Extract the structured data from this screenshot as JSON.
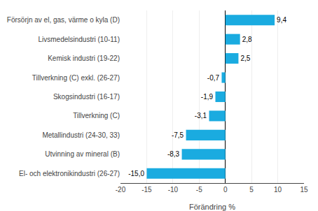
{
  "chart_data": {
    "type": "bar",
    "orientation": "horizontal",
    "categories": [
      "El- och elektronikindustri (26-27)",
      "Utvinning av mineral (B)",
      "Metallindustri (24-30, 33)",
      "Tillverkning (C)",
      "Skogsindustri (16-17)",
      "Tillverkning (C) exkl. (26-27)",
      "Kemisk industri (19-22)",
      "Livsmedelsindustri (10-11)",
      "Försörjn av el, gas, värme o kyla (D)"
    ],
    "values": [
      -15.0,
      -8.3,
      -7.5,
      -3.1,
      -1.9,
      -0.7,
      2.5,
      2.8,
      9.4
    ],
    "value_labels": [
      "-15,0",
      "-8,3",
      "-7,5",
      "-3,1",
      "-1,9",
      "-0,7",
      "2,5",
      "2,8",
      "9,4"
    ],
    "data_labels": true,
    "color": "#1AABE0",
    "xlabel": "Förändring %",
    "xlim": [
      -20,
      15
    ],
    "xticks": [
      -20,
      -15,
      -10,
      -5,
      0,
      5,
      10,
      15
    ],
    "grid": true
  }
}
